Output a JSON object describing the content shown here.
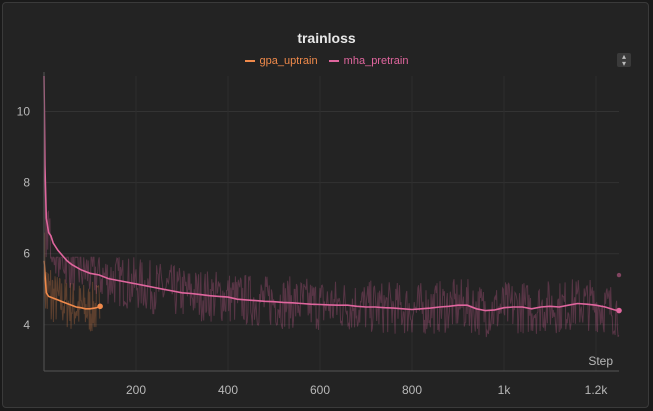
{
  "chart_data": {
    "type": "line",
    "title": "trainloss",
    "xlabel": "Step",
    "ylabel": "",
    "xlim": [
      0,
      1250
    ],
    "ylim": [
      2.7,
      11
    ],
    "x_ticks": [
      {
        "value": 200,
        "label": "200"
      },
      {
        "value": 400,
        "label": "400"
      },
      {
        "value": 600,
        "label": "600"
      },
      {
        "value": 800,
        "label": "800"
      },
      {
        "value": 1000,
        "label": "1k"
      },
      {
        "value": 1200,
        "label": "1.2k"
      }
    ],
    "y_ticks": [
      {
        "value": 4,
        "label": "4"
      },
      {
        "value": 6,
        "label": "6"
      },
      {
        "value": 8,
        "label": "8"
      },
      {
        "value": 10,
        "label": "10"
      }
    ],
    "grid": true,
    "legend_position": "top-center",
    "series": [
      {
        "name": "gpa_uptrain",
        "color": "#f08a4b",
        "x": [
          0,
          5,
          10,
          20,
          30,
          40,
          50,
          60,
          70,
          80,
          90,
          100,
          110,
          120,
          122
        ],
        "y": [
          5.8,
          4.9,
          4.8,
          4.75,
          4.7,
          4.65,
          4.6,
          4.55,
          4.5,
          4.48,
          4.45,
          4.45,
          4.47,
          4.5,
          4.52
        ],
        "raw_range": [
          3.2,
          5.9
        ]
      },
      {
        "name": "mha_pretrain",
        "color": "#e0669e",
        "x": [
          0,
          2,
          5,
          10,
          15,
          20,
          30,
          40,
          50,
          60,
          80,
          100,
          120,
          140,
          160,
          180,
          200,
          220,
          240,
          260,
          280,
          300,
          320,
          340,
          360,
          380,
          400,
          420,
          440,
          460,
          480,
          500,
          520,
          540,
          560,
          580,
          600,
          620,
          640,
          660,
          680,
          700,
          720,
          740,
          760,
          780,
          800,
          820,
          840,
          860,
          880,
          900,
          920,
          940,
          960,
          980,
          1000,
          1020,
          1040,
          1060,
          1080,
          1100,
          1120,
          1140,
          1160,
          1180,
          1200,
          1220,
          1240,
          1250
        ],
        "y": [
          11,
          8.5,
          7.0,
          6.6,
          6.5,
          6.3,
          6.1,
          5.95,
          5.8,
          5.7,
          5.55,
          5.45,
          5.4,
          5.3,
          5.25,
          5.2,
          5.15,
          5.1,
          5.05,
          5.0,
          4.95,
          4.9,
          4.88,
          4.85,
          4.82,
          4.8,
          4.78,
          4.72,
          4.7,
          4.68,
          4.66,
          4.65,
          4.63,
          4.62,
          4.6,
          4.58,
          4.57,
          4.56,
          4.55,
          4.55,
          4.52,
          4.5,
          4.5,
          4.48,
          4.47,
          4.45,
          4.43,
          4.45,
          4.47,
          4.5,
          4.52,
          4.55,
          4.55,
          4.45,
          4.4,
          4.42,
          4.48,
          4.5,
          4.5,
          4.45,
          4.5,
          4.52,
          4.5,
          4.55,
          4.6,
          4.58,
          4.55,
          4.5,
          4.42,
          4.4
        ],
        "raw_range": [
          2.9,
          5.9
        ],
        "last_raw": 5.4
      }
    ]
  }
}
